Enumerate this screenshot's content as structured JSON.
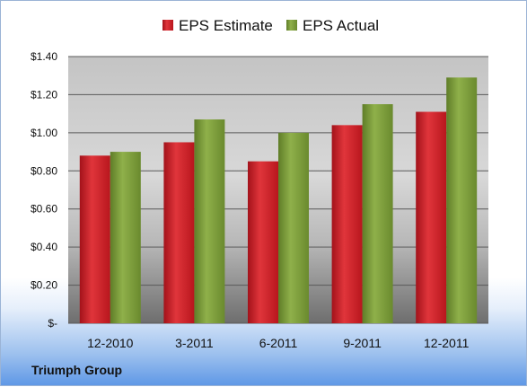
{
  "chart_data": {
    "type": "bar",
    "categories": [
      "12-2010",
      "3-2011",
      "6-2011",
      "9-2011",
      "12-2011"
    ],
    "series": [
      {
        "name": "EPS Estimate",
        "values": [
          0.88,
          0.95,
          0.85,
          1.04,
          1.11
        ],
        "color": "#d42027"
      },
      {
        "name": "EPS Actual",
        "values": [
          0.9,
          1.07,
          1.0,
          1.15,
          1.29
        ],
        "color": "#7f9f3a"
      }
    ],
    "yticks": [
      "$-",
      "$0.20",
      "$0.40",
      "$0.60",
      "$0.80",
      "$1.00",
      "$1.20",
      "$1.40"
    ],
    "ylim": [
      0,
      1.4
    ],
    "legend_position": "top",
    "grid": true
  },
  "footer": {
    "company": "Triumph Group"
  }
}
